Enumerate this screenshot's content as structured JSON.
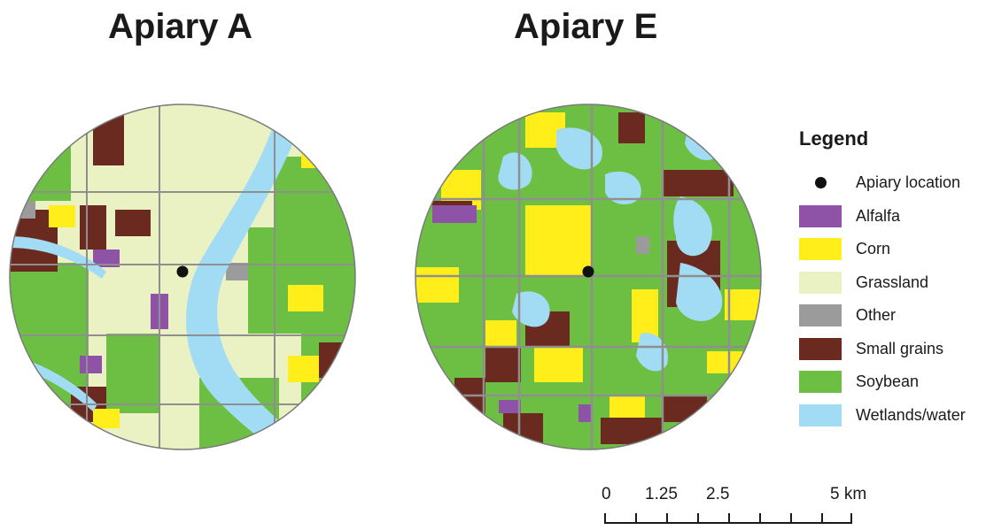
{
  "maps": [
    {
      "title": "Apiary A"
    },
    {
      "title": "Apiary E"
    }
  ],
  "legend": {
    "heading": "Legend",
    "items": [
      {
        "label": "Apiary location",
        "color": "#111111",
        "symbol": "dot"
      },
      {
        "label": "Alfalfa",
        "color": "#8e52a6",
        "symbol": "square"
      },
      {
        "label": "Corn",
        "color": "#ffee1a",
        "symbol": "square"
      },
      {
        "label": "Grassland",
        "color": "#eaf2c4",
        "symbol": "square"
      },
      {
        "label": "Other",
        "color": "#9b9b9b",
        "symbol": "square"
      },
      {
        "label": "Small grains",
        "color": "#6b2a1f",
        "symbol": "square"
      },
      {
        "label": "Soybean",
        "color": "#6cbf43",
        "symbol": "square"
      },
      {
        "label": "Wetlands/water",
        "color": "#a2dcf4",
        "symbol": "square"
      }
    ]
  },
  "scale_bar": {
    "labels": [
      "0",
      "1.25",
      "2.5",
      "5 km"
    ]
  }
}
